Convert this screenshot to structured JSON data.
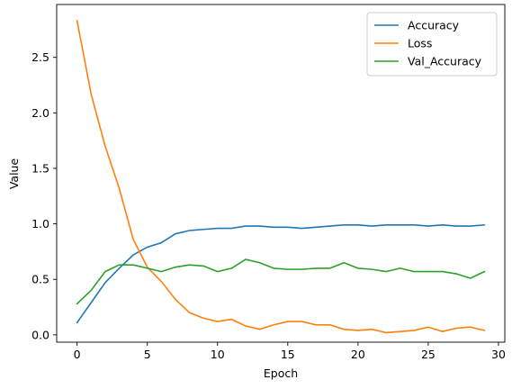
{
  "chart_data": {
    "type": "line",
    "xlabel": "Epoch",
    "ylabel": "Value",
    "xlim": [
      -1.45,
      30.45
    ],
    "ylim": [
      -0.066,
      2.976
    ],
    "xticks": [
      0,
      5,
      10,
      15,
      20,
      25,
      30
    ],
    "xtick_labels": [
      "0",
      "5",
      "10",
      "15",
      "20",
      "25",
      "30"
    ],
    "yticks": [
      0.0,
      0.5,
      1.0,
      1.5,
      2.0,
      2.5
    ],
    "ytick_labels": [
      "0.0",
      "0.5",
      "1.0",
      "1.5",
      "2.0",
      "2.5"
    ],
    "grid": false,
    "legend_position": "top-right",
    "x": [
      0,
      1,
      2,
      3,
      4,
      5,
      6,
      7,
      8,
      9,
      10,
      11,
      12,
      13,
      14,
      15,
      16,
      17,
      18,
      19,
      20,
      21,
      22,
      23,
      24,
      25,
      26,
      27,
      28,
      29
    ],
    "series": [
      {
        "name": "Accuracy",
        "color": "#1f77b4",
        "values": [
          0.11,
          0.29,
          0.47,
          0.6,
          0.72,
          0.79,
          0.83,
          0.91,
          0.94,
          0.95,
          0.96,
          0.96,
          0.98,
          0.98,
          0.97,
          0.97,
          0.96,
          0.97,
          0.98,
          0.99,
          0.99,
          0.98,
          0.99,
          0.99,
          0.99,
          0.98,
          0.99,
          0.98,
          0.98,
          0.99
        ]
      },
      {
        "name": "Loss",
        "color": "#ff7f0e",
        "values": [
          2.83,
          2.17,
          1.7,
          1.32,
          0.86,
          0.61,
          0.48,
          0.32,
          0.2,
          0.15,
          0.12,
          0.14,
          0.08,
          0.05,
          0.09,
          0.12,
          0.12,
          0.09,
          0.09,
          0.05,
          0.04,
          0.05,
          0.02,
          0.03,
          0.04,
          0.07,
          0.03,
          0.06,
          0.07,
          0.04
        ]
      },
      {
        "name": "Val_Accuracy",
        "color": "#2ca02c",
        "values": [
          0.28,
          0.4,
          0.57,
          0.63,
          0.63,
          0.6,
          0.57,
          0.61,
          0.63,
          0.62,
          0.57,
          0.6,
          0.68,
          0.65,
          0.6,
          0.59,
          0.59,
          0.6,
          0.6,
          0.65,
          0.6,
          0.59,
          0.57,
          0.6,
          0.57,
          0.57,
          0.57,
          0.55,
          0.51,
          0.57
        ]
      }
    ]
  }
}
